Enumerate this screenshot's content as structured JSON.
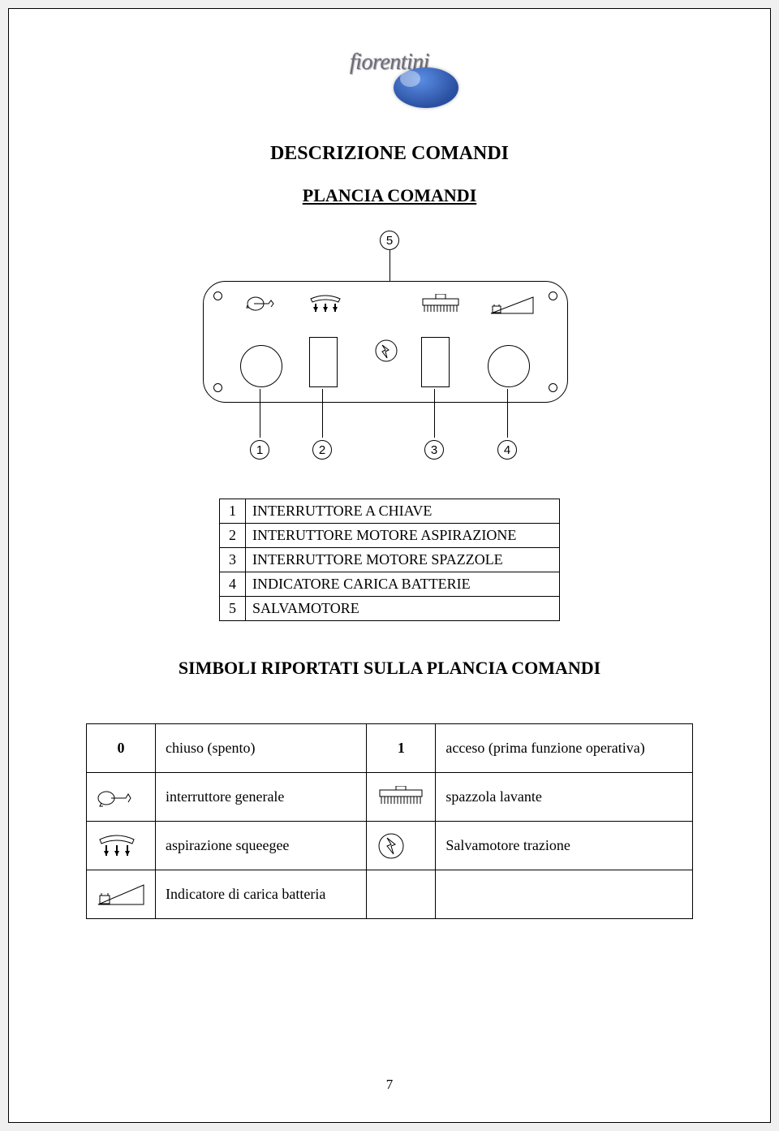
{
  "logo_text": "fiorentini",
  "title": "DESCRIZIONE COMANDI",
  "subtitle": "PLANCIA COMANDI",
  "callouts": [
    "1",
    "2",
    "3",
    "4",
    "5"
  ],
  "table1": {
    "rows": [
      {
        "n": "1",
        "label": "INTERRUTTORE A CHIAVE"
      },
      {
        "n": "2",
        "label": "INTERUTTORE MOTORE ASPIRAZIONE"
      },
      {
        "n": "3",
        "label": "INTERRUTTORE MOTORE SPAZZOLE"
      },
      {
        "n": "4",
        "label": "INDICATORE CARICA BATTERIE"
      },
      {
        "n": "5",
        "label": "SALVAMOTORE"
      }
    ]
  },
  "section2_title": "SIMBOLI RIPORTATI SULLA PLANCIA COMANDI",
  "table2": {
    "rows": [
      {
        "c1": "0",
        "c2": "chiuso (spento)",
        "c3": "1",
        "c4": "acceso (prima funzione operativa)",
        "bold13": true,
        "icon1": null,
        "icon3": null
      },
      {
        "c1": "",
        "c2": "interruttore generale",
        "c3": "",
        "c4": "spazzola lavante",
        "icon1": "key",
        "icon3": "brush"
      },
      {
        "c1": "",
        "c2": "aspirazione squeegee",
        "c3": "",
        "c4": "Salvamotore trazione",
        "icon1": "squeegee",
        "icon3": "motor"
      },
      {
        "c1": "",
        "c2": "Indicatore di carica batteria",
        "c3": "",
        "c4": "",
        "icon1": "battery",
        "icon3": null
      }
    ]
  },
  "page_number": "7",
  "colors": {
    "page_bg": "#ffffff",
    "border": "#000000",
    "logo_globe1": "#5b8fe6",
    "logo_globe2": "#2a4fa0",
    "logo_text": "#6b6b7a"
  }
}
